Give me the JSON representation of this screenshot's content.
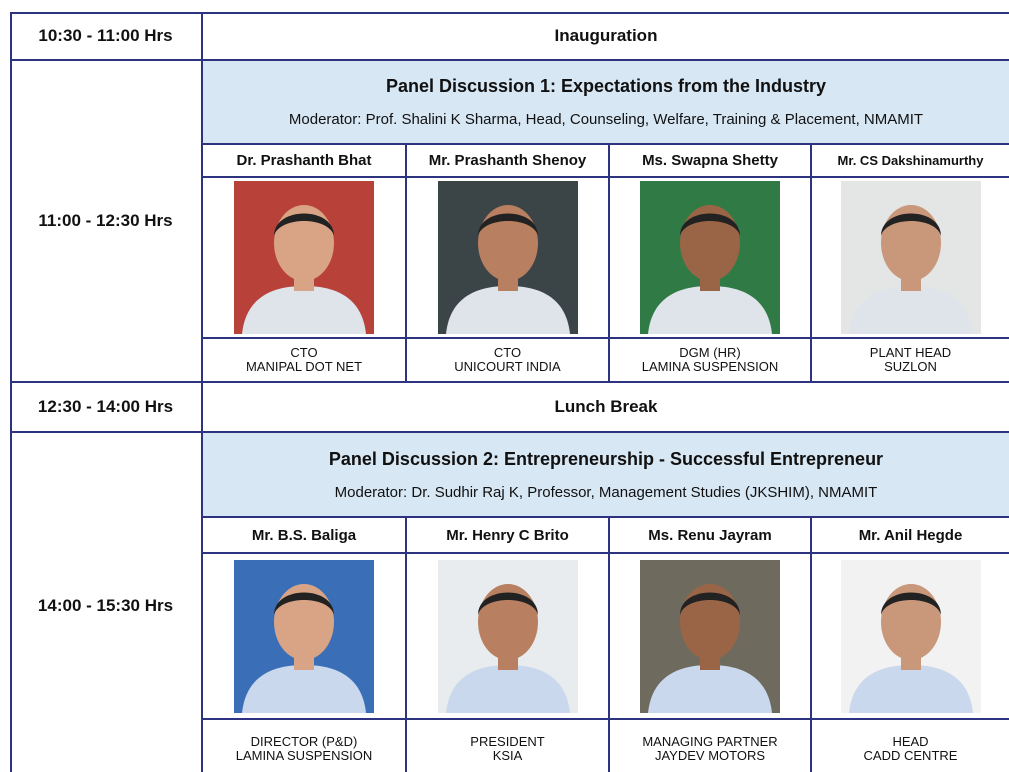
{
  "schedule": {
    "rows": [
      {
        "time": "10:30 - 11:00 Hrs",
        "event": "Inauguration"
      },
      {
        "time": "11:00 - 12:30 Hrs",
        "panel": {
          "title": "Panel Discussion 1: Expectations from the Industry",
          "moderator": "Moderator: Prof. Shalini K Sharma, Head, Counseling, Welfare, Training & Placement, NMAMIT",
          "panelists": [
            {
              "name": "Dr. Prashanth Bhat",
              "role": [
                "CTO",
                "MANIPAL DOT NET"
              ]
            },
            {
              "name": "Mr. Prashanth Shenoy",
              "role": [
                "CTO",
                "UNICOURT INDIA"
              ]
            },
            {
              "name": "Ms. Swapna Shetty",
              "role": [
                "DGM (HR)",
                "LAMINA SUSPENSION"
              ]
            },
            {
              "name": "Mr. CS Dakshinamurthy",
              "role": [
                "PLANT HEAD",
                "SUZLON"
              ]
            }
          ]
        }
      },
      {
        "time": "12:30 - 14:00 Hrs",
        "event": "Lunch Break"
      },
      {
        "time": "14:00 - 15:30 Hrs",
        "panel": {
          "title": "Panel Discussion 2: Entrepreneurship - Successful Entrepreneur",
          "moderator": "Moderator: Dr. Sudhir Raj K, Professor, Management Studies (JKSHIM), NMAMIT",
          "panelists": [
            {
              "name": "Mr. B.S. Baliga",
              "role": [
                "DIRECTOR (P&D)",
                "LAMINA SUSPENSION"
              ]
            },
            {
              "name": "Mr. Henry C Brito",
              "role": [
                "PRESIDENT",
                "KSIA"
              ]
            },
            {
              "name": "Ms. Renu Jayram",
              "role": [
                "MANAGING PARTNER",
                "JAYDEV MOTORS"
              ]
            },
            {
              "name": "Mr. Anil Hegde",
              "role": [
                "HEAD",
                "CADD CENTRE"
              ]
            }
          ]
        }
      }
    ]
  }
}
